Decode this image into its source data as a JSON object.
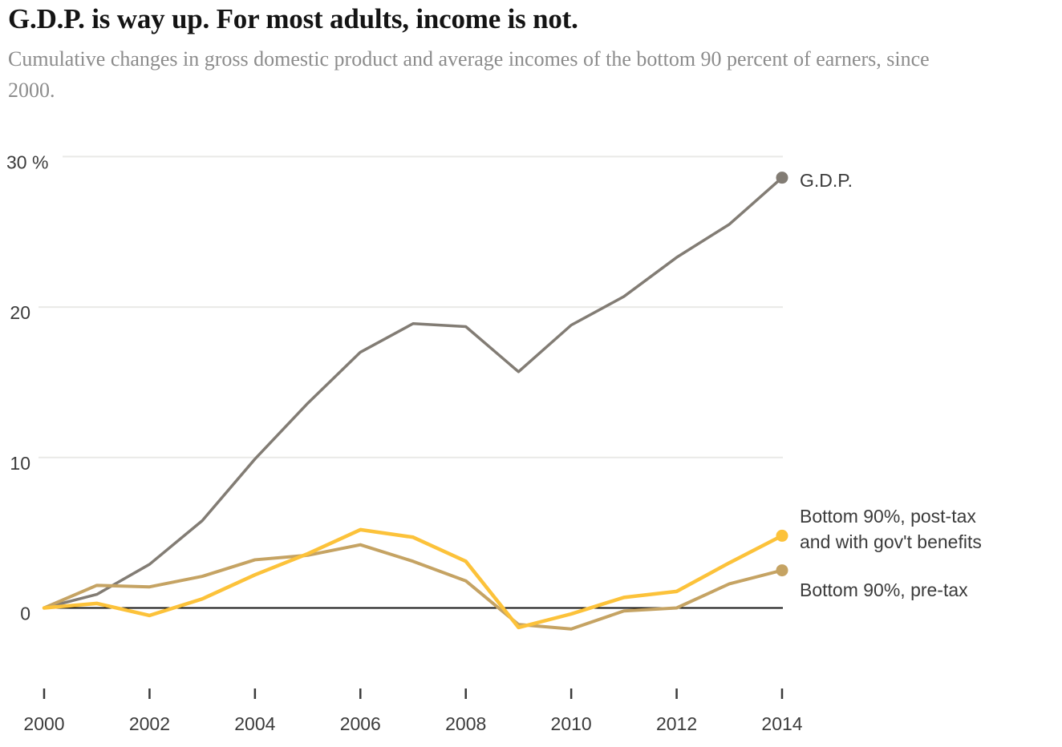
{
  "header": {
    "title": "G.D.P. is way up. For most adults, income is not.",
    "subtitle": "Cumulative changes in gross domestic product and average incomes of the bottom 90 percent of earners, since 2000."
  },
  "legend": {
    "gdp": "G.D.P.",
    "posttax_line1": "Bottom 90%, post-tax",
    "posttax_line2": "and with gov't benefits",
    "pretax": "Bottom 90%, pre-tax"
  },
  "colors": {
    "gdp_line": "#827c74",
    "posttax_line": "#fcc23a",
    "pretax_line": "#c5a363",
    "gridline": "#e9e9e7",
    "zero_line": "#141414",
    "axis_text": "#3b3b3b",
    "title_text": "#141414",
    "subtitle_text": "#8c8c8c"
  },
  "chart_data": {
    "type": "line",
    "title": "G.D.P. is way up. For most adults, income is not.",
    "subtitle": "Cumulative changes in gross domestic product and average incomes of the bottom 90 percent of earners, since 2000.",
    "unit": "percent cumulative change since 2000",
    "x": [
      2000,
      2001,
      2002,
      2003,
      2004,
      2005,
      2006,
      2007,
      2008,
      2009,
      2010,
      2011,
      2012,
      2013,
      2014
    ],
    "series": [
      {
        "id": "gdp",
        "name": "G.D.P.",
        "color_key": "gdp_line",
        "stroke_width": 3.5,
        "end_dot": true,
        "values": [
          0,
          0.9,
          2.9,
          5.8,
          9.9,
          13.6,
          17.0,
          18.9,
          18.7,
          15.7,
          18.8,
          20.7,
          23.3,
          25.5,
          28.6
        ]
      },
      {
        "id": "bottom90-pretax",
        "name": "Bottom 90%, pre-tax",
        "color_key": "pretax_line",
        "stroke_width": 4,
        "end_dot": true,
        "values": [
          0,
          1.5,
          1.4,
          2.1,
          3.2,
          3.5,
          4.2,
          3.1,
          1.8,
          -1.1,
          -1.4,
          -0.2,
          0.0,
          1.6,
          2.5
        ]
      },
      {
        "id": "bottom90-posttax",
        "name": "Bottom 90%, post-tax and with gov't benefits",
        "color_key": "posttax_line",
        "stroke_width": 4.5,
        "end_dot": true,
        "values": [
          0,
          0.3,
          -0.5,
          0.6,
          2.2,
          3.6,
          5.2,
          4.7,
          3.1,
          -1.3,
          -0.4,
          0.7,
          1.1,
          3.0,
          4.8
        ]
      }
    ],
    "xticks": [
      2000,
      2002,
      2004,
      2006,
      2008,
      2010,
      2012,
      2014
    ],
    "yticks": [
      {
        "value": 0,
        "label": "0"
      },
      {
        "value": 10,
        "label": "10"
      },
      {
        "value": 20,
        "label": "20"
      },
      {
        "value": 30,
        "label": "30 %"
      }
    ],
    "ylim": [
      -2.5,
      31
    ],
    "xlabel": "",
    "ylabel": "",
    "grid": "horizontal light gridlines at 10/20/30, black zero axis",
    "legend_position": "right of line ends"
  }
}
